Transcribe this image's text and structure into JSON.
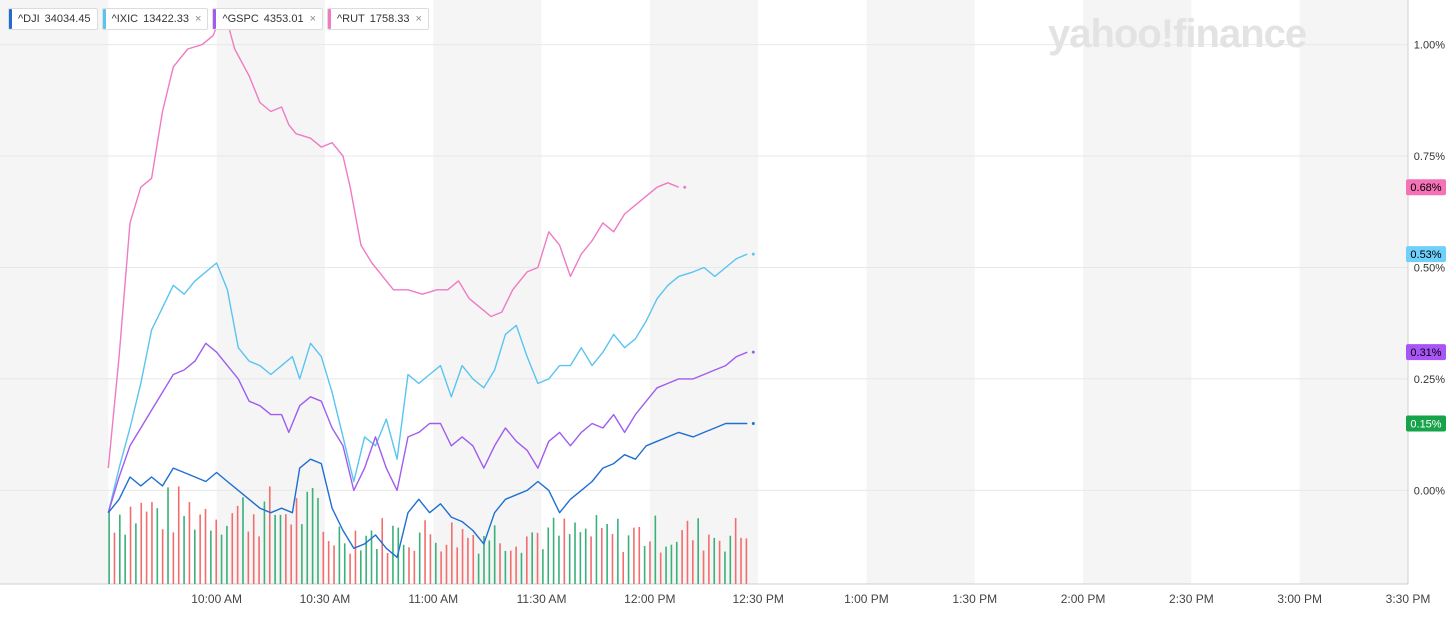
{
  "logo_text": "yahoo!finance",
  "legend": [
    {
      "symbol": "^DJI",
      "value": "34034.45",
      "color": "#1f6fd1",
      "closable": false
    },
    {
      "symbol": "^IXIC",
      "value": "13422.33",
      "color": "#5ac4f0",
      "closable": true
    },
    {
      "symbol": "^GSPC",
      "value": "4353.01",
      "color": "#a05cf0",
      "closable": true
    },
    {
      "symbol": "^RUT",
      "value": "1758.33",
      "color": "#f07ac4",
      "closable": true
    }
  ],
  "close_glyph": "×",
  "chart_data": {
    "type": "line",
    "x_axis": {
      "ticks": [
        "10:00 AM",
        "10:30 AM",
        "11:00 AM",
        "11:30 AM",
        "12:00 PM",
        "12:30 PM",
        "1:00 PM",
        "1:30 PM",
        "2:00 PM",
        "2:30 PM",
        "3:00 PM",
        "3:30 PM"
      ],
      "range_minutes": [
        540,
        930
      ]
    },
    "y_axis": {
      "ticks": [
        "1.00%",
        "0.75%",
        "0.50%",
        "0.25%",
        "0.00%"
      ],
      "tick_values": [
        1.0,
        0.75,
        0.5,
        0.25,
        0.0
      ],
      "range": [
        -0.21,
        1.1
      ]
    },
    "series": [
      {
        "name": "^RUT",
        "color": "#f07ac4",
        "last_label": "0.68%",
        "points": [
          [
            570,
            0.05
          ],
          [
            573,
            0.3
          ],
          [
            576,
            0.6
          ],
          [
            579,
            0.68
          ],
          [
            582,
            0.7
          ],
          [
            585,
            0.85
          ],
          [
            588,
            0.95
          ],
          [
            592,
            0.99
          ],
          [
            596,
            1.0
          ],
          [
            599,
            1.02
          ],
          [
            602,
            1.08
          ],
          [
            605,
            0.99
          ],
          [
            609,
            0.93
          ],
          [
            612,
            0.87
          ],
          [
            615,
            0.85
          ],
          [
            618,
            0.86
          ],
          [
            620,
            0.82
          ],
          [
            622,
            0.8
          ],
          [
            626,
            0.79
          ],
          [
            629,
            0.77
          ],
          [
            632,
            0.78
          ],
          [
            635,
            0.75
          ],
          [
            637,
            0.68
          ],
          [
            640,
            0.55
          ],
          [
            643,
            0.51
          ],
          [
            646,
            0.48
          ],
          [
            649,
            0.45
          ],
          [
            653,
            0.45
          ],
          [
            657,
            0.44
          ],
          [
            661,
            0.45
          ],
          [
            664,
            0.45
          ],
          [
            667,
            0.47
          ],
          [
            670,
            0.43
          ],
          [
            673,
            0.41
          ],
          [
            676,
            0.39
          ],
          [
            679,
            0.4
          ],
          [
            682,
            0.45
          ],
          [
            686,
            0.49
          ],
          [
            689,
            0.5
          ],
          [
            692,
            0.58
          ],
          [
            695,
            0.55
          ],
          [
            698,
            0.48
          ],
          [
            701,
            0.53
          ],
          [
            704,
            0.56
          ],
          [
            707,
            0.6
          ],
          [
            710,
            0.58
          ],
          [
            713,
            0.62
          ],
          [
            716,
            0.64
          ],
          [
            719,
            0.66
          ],
          [
            722,
            0.68
          ],
          [
            725,
            0.69
          ],
          [
            728,
            0.68
          ]
        ]
      },
      {
        "name": "^IXIC",
        "color": "#5ac4f0",
        "last_label": "0.53%",
        "points": [
          [
            570,
            -0.05
          ],
          [
            573,
            0.05
          ],
          [
            576,
            0.14
          ],
          [
            579,
            0.24
          ],
          [
            582,
            0.36
          ],
          [
            585,
            0.41
          ],
          [
            588,
            0.46
          ],
          [
            591,
            0.44
          ],
          [
            594,
            0.47
          ],
          [
            597,
            0.49
          ],
          [
            600,
            0.51
          ],
          [
            603,
            0.45
          ],
          [
            606,
            0.32
          ],
          [
            609,
            0.29
          ],
          [
            612,
            0.28
          ],
          [
            615,
            0.26
          ],
          [
            618,
            0.28
          ],
          [
            621,
            0.3
          ],
          [
            623,
            0.25
          ],
          [
            626,
            0.33
          ],
          [
            629,
            0.3
          ],
          [
            632,
            0.22
          ],
          [
            635,
            0.12
          ],
          [
            638,
            0.02
          ],
          [
            641,
            0.12
          ],
          [
            644,
            0.1
          ],
          [
            647,
            0.16
          ],
          [
            650,
            0.07
          ],
          [
            653,
            0.26
          ],
          [
            656,
            0.24
          ],
          [
            659,
            0.26
          ],
          [
            662,
            0.28
          ],
          [
            665,
            0.21
          ],
          [
            668,
            0.28
          ],
          [
            671,
            0.25
          ],
          [
            674,
            0.23
          ],
          [
            677,
            0.27
          ],
          [
            680,
            0.35
          ],
          [
            683,
            0.37
          ],
          [
            686,
            0.3
          ],
          [
            689,
            0.24
          ],
          [
            692,
            0.25
          ],
          [
            695,
            0.28
          ],
          [
            698,
            0.28
          ],
          [
            701,
            0.32
          ],
          [
            704,
            0.28
          ],
          [
            707,
            0.31
          ],
          [
            710,
            0.35
          ],
          [
            713,
            0.32
          ],
          [
            716,
            0.34
          ],
          [
            719,
            0.38
          ],
          [
            722,
            0.43
          ],
          [
            725,
            0.46
          ],
          [
            728,
            0.48
          ],
          [
            732,
            0.49
          ],
          [
            735,
            0.5
          ],
          [
            738,
            0.48
          ],
          [
            741,
            0.5
          ],
          [
            744,
            0.52
          ],
          [
            747,
            0.53
          ]
        ]
      },
      {
        "name": "^GSPC",
        "color": "#a05cf0",
        "last_label": "0.31%",
        "points": [
          [
            570,
            -0.05
          ],
          [
            573,
            0.03
          ],
          [
            576,
            0.1
          ],
          [
            579,
            0.14
          ],
          [
            582,
            0.18
          ],
          [
            585,
            0.22
          ],
          [
            588,
            0.26
          ],
          [
            591,
            0.27
          ],
          [
            594,
            0.29
          ],
          [
            597,
            0.33
          ],
          [
            600,
            0.31
          ],
          [
            603,
            0.28
          ],
          [
            606,
            0.25
          ],
          [
            609,
            0.2
          ],
          [
            612,
            0.19
          ],
          [
            615,
            0.17
          ],
          [
            618,
            0.17
          ],
          [
            620,
            0.13
          ],
          [
            623,
            0.19
          ],
          [
            626,
            0.21
          ],
          [
            629,
            0.2
          ],
          [
            632,
            0.14
          ],
          [
            635,
            0.1
          ],
          [
            638,
            0.0
          ],
          [
            641,
            0.05
          ],
          [
            644,
            0.12
          ],
          [
            647,
            0.05
          ],
          [
            650,
            0.0
          ],
          [
            653,
            0.12
          ],
          [
            656,
            0.13
          ],
          [
            659,
            0.15
          ],
          [
            662,
            0.15
          ],
          [
            665,
            0.1
          ],
          [
            668,
            0.12
          ],
          [
            671,
            0.1
          ],
          [
            674,
            0.05
          ],
          [
            677,
            0.1
          ],
          [
            680,
            0.14
          ],
          [
            683,
            0.11
          ],
          [
            686,
            0.09
          ],
          [
            689,
            0.05
          ],
          [
            692,
            0.11
          ],
          [
            695,
            0.13
          ],
          [
            698,
            0.1
          ],
          [
            701,
            0.13
          ],
          [
            704,
            0.15
          ],
          [
            707,
            0.14
          ],
          [
            710,
            0.17
          ],
          [
            713,
            0.13
          ],
          [
            716,
            0.17
          ],
          [
            719,
            0.2
          ],
          [
            722,
            0.23
          ],
          [
            725,
            0.24
          ],
          [
            728,
            0.25
          ],
          [
            732,
            0.25
          ],
          [
            735,
            0.26
          ],
          [
            738,
            0.27
          ],
          [
            741,
            0.28
          ],
          [
            744,
            0.3
          ],
          [
            747,
            0.31
          ]
        ]
      },
      {
        "name": "^DJI",
        "color": "#1f6fd1",
        "last_label": "0.15%",
        "points": [
          [
            570,
            -0.05
          ],
          [
            573,
            -0.02
          ],
          [
            576,
            0.03
          ],
          [
            579,
            0.01
          ],
          [
            582,
            0.03
          ],
          [
            585,
            0.01
          ],
          [
            588,
            0.05
          ],
          [
            591,
            0.04
          ],
          [
            594,
            0.03
          ],
          [
            597,
            0.02
          ],
          [
            600,
            0.04
          ],
          [
            603,
            0.02
          ],
          [
            606,
            0.0
          ],
          [
            609,
            -0.02
          ],
          [
            612,
            -0.04
          ],
          [
            615,
            -0.05
          ],
          [
            618,
            -0.04
          ],
          [
            621,
            -0.05
          ],
          [
            623,
            0.05
          ],
          [
            626,
            0.07
          ],
          [
            629,
            0.06
          ],
          [
            632,
            -0.04
          ],
          [
            635,
            -0.09
          ],
          [
            638,
            -0.13
          ],
          [
            641,
            -0.12
          ],
          [
            644,
            -0.1
          ],
          [
            647,
            -0.13
          ],
          [
            650,
            -0.15
          ],
          [
            653,
            -0.05
          ],
          [
            656,
            -0.02
          ],
          [
            659,
            -0.05
          ],
          [
            662,
            -0.03
          ],
          [
            665,
            -0.06
          ],
          [
            668,
            -0.07
          ],
          [
            671,
            -0.09
          ],
          [
            674,
            -0.12
          ],
          [
            677,
            -0.05
          ],
          [
            680,
            -0.02
          ],
          [
            683,
            -0.01
          ],
          [
            686,
            0.0
          ],
          [
            689,
            0.02
          ],
          [
            692,
            0.0
          ],
          [
            695,
            -0.05
          ],
          [
            698,
            -0.02
          ],
          [
            701,
            0.0
          ],
          [
            704,
            0.02
          ],
          [
            707,
            0.05
          ],
          [
            710,
            0.06
          ],
          [
            713,
            0.08
          ],
          [
            716,
            0.07
          ],
          [
            719,
            0.1
          ],
          [
            722,
            0.11
          ],
          [
            725,
            0.12
          ],
          [
            728,
            0.13
          ],
          [
            732,
            0.12
          ],
          [
            735,
            0.13
          ],
          [
            738,
            0.14
          ],
          [
            741,
            0.15
          ],
          [
            744,
            0.15
          ],
          [
            747,
            0.15
          ]
        ]
      }
    ],
    "volume": {
      "bar_count": 120,
      "up_color": "#3ab07a",
      "down_color": "#f26d6d"
    }
  }
}
